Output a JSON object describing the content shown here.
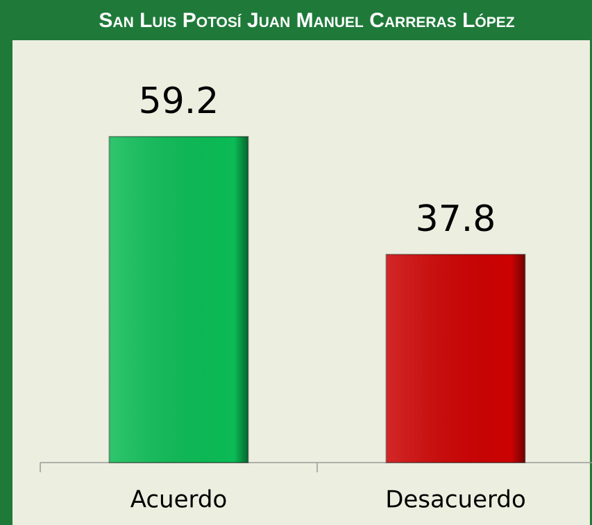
{
  "chart_data": {
    "type": "bar",
    "title": "San Luis Potosí Juan Manuel Carreras López",
    "categories": [
      "Acuerdo",
      "Desacuerdo"
    ],
    "values": [
      59.2,
      37.8
    ],
    "colors": [
      "#0bbb55",
      "#cc0202"
    ]
  }
}
